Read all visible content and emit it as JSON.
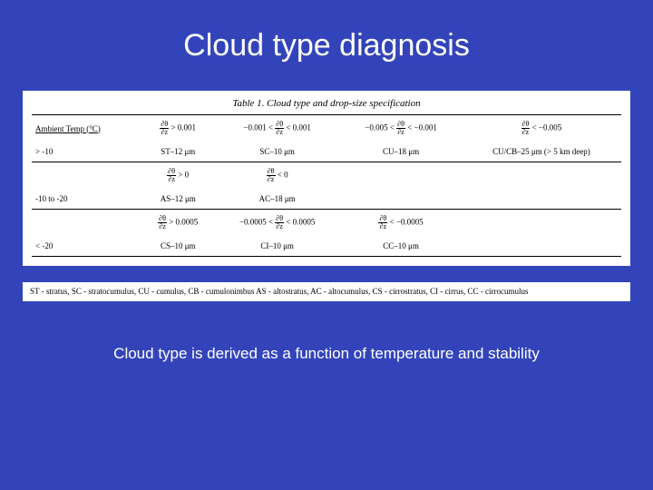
{
  "background_color": "#3344bb",
  "title": "Cloud type diagnosis",
  "footer": "Cloud type is derived as a function of temperature and stability",
  "table": {
    "caption": "Table 1. Cloud type and drop-size specification",
    "col_label": "Ambient Temp (°C)",
    "deriv_num": "∂θ",
    "deriv_den": "∂z",
    "section1": {
      "cond1_rhs": " > 0.001",
      "cond2_lhs": "−0.001 < ",
      "cond2_rhs": " < 0.001",
      "cond3_lhs": "−0.005 < ",
      "cond3_rhs": " < −0.001",
      "cond4_rhs": " < −0.005",
      "temp": "> -10",
      "v1": "ST–12 μm",
      "v2": "SC–10 μm",
      "v3": "CU–18 μm",
      "v4": "CU/CB–25 μm (> 5 km deep)"
    },
    "section2": {
      "cond1_rhs": " > 0",
      "cond2_rhs": " < 0",
      "temp": "-10 to -20",
      "v1": "AS–12 μm",
      "v2": "AC–18 μm"
    },
    "section3": {
      "cond1_rhs": " > 0.0005",
      "cond2_lhs": "−0.0005 < ",
      "cond2_rhs": " < 0.0005",
      "cond3_rhs": " < −0.0005",
      "temp": "< -20",
      "v1": "CS–10 μm",
      "v2": "CI–10 μm",
      "v3": "CC–10 μm"
    }
  },
  "legend": "ST - stratus, SC - stratocumulus, CU - cumulus, CB - cumulonimbus AS - altostratus, AC - altocumulus, CS - cirrostratus, CI - cirrus, CC - cirrocumulus",
  "style": {
    "title_fontsize": 34,
    "footer_fontsize": 17,
    "table_fontsize": 9,
    "caption_fontsize": 11,
    "text_color_title": "#ffffff",
    "text_color_table": "#000000",
    "rule_color": "#000000"
  }
}
